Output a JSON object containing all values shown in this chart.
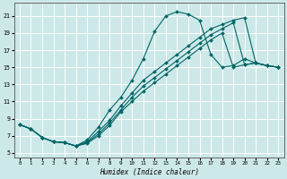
{
  "xlabel": "Humidex (Indice chaleur)",
  "bg_color": "#cde8e8",
  "grid_color": "#b0d0d0",
  "line_color": "#006666",
  "marker_color": "#006666",
  "xlim": [
    -0.5,
    23.5
  ],
  "ylim": [
    4.5,
    22.5
  ],
  "xticks": [
    0,
    1,
    2,
    3,
    4,
    5,
    6,
    7,
    8,
    9,
    10,
    11,
    12,
    13,
    14,
    15,
    16,
    17,
    18,
    19,
    20,
    21,
    22,
    23
  ],
  "yticks": [
    5,
    7,
    9,
    11,
    13,
    15,
    17,
    19,
    21
  ],
  "lines": [
    {
      "x": [
        0,
        1,
        2,
        3,
        4,
        5,
        6,
        7,
        8,
        9,
        10,
        11,
        12,
        13,
        14,
        15,
        16,
        17,
        18,
        19,
        20,
        21,
        22,
        23
      ],
      "y": [
        8.3,
        7.8,
        6.8,
        6.3,
        6.2,
        5.8,
        6.5,
        8.0,
        10.0,
        11.5,
        13.5,
        16.0,
        19.2,
        21.0,
        21.5,
        21.2,
        20.5,
        16.5,
        15.0,
        15.2,
        16.0,
        15.5,
        15.2,
        15.0
      ]
    },
    {
      "x": [
        0,
        1,
        2,
        3,
        4,
        5,
        6,
        7,
        8,
        9,
        10,
        11,
        12,
        13,
        14,
        15,
        16,
        17,
        18,
        19,
        20,
        21,
        22,
        23
      ],
      "y": [
        8.3,
        7.8,
        6.8,
        6.3,
        6.2,
        5.8,
        6.3,
        7.5,
        8.8,
        10.5,
        12.0,
        13.5,
        14.5,
        15.5,
        16.5,
        17.5,
        18.5,
        19.5,
        20.0,
        20.5,
        20.8,
        15.5,
        15.2,
        15.0
      ]
    },
    {
      "x": [
        0,
        1,
        2,
        3,
        4,
        5,
        6,
        7,
        8,
        9,
        10,
        11,
        12,
        13,
        14,
        15,
        16,
        17,
        18,
        19,
        20,
        21,
        22,
        23
      ],
      "y": [
        8.3,
        7.8,
        6.8,
        6.3,
        6.2,
        5.8,
        6.2,
        7.2,
        8.5,
        10.0,
        11.5,
        12.8,
        13.8,
        14.8,
        15.8,
        16.8,
        17.8,
        18.8,
        19.5,
        20.2,
        15.3,
        15.5,
        15.2,
        15.0
      ]
    },
    {
      "x": [
        0,
        1,
        2,
        3,
        4,
        5,
        6,
        7,
        8,
        9,
        10,
        11,
        12,
        13,
        14,
        15,
        16,
        17,
        18,
        19,
        20,
        21,
        22,
        23
      ],
      "y": [
        8.3,
        7.8,
        6.8,
        6.3,
        6.2,
        5.8,
        6.1,
        7.0,
        8.2,
        9.8,
        11.0,
        12.2,
        13.2,
        14.2,
        15.2,
        16.2,
        17.2,
        18.2,
        19.0,
        15.0,
        15.3,
        15.5,
        15.2,
        15.0
      ]
    }
  ]
}
